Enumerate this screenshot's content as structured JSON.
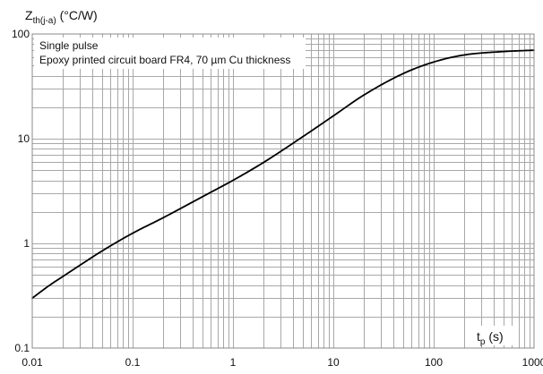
{
  "chart_data": {
    "type": "line",
    "title": "",
    "ylabel_main": "Z",
    "ylabel_sub": "th(j-a)",
    "ylabel_unit": " (°C/W)",
    "xlabel_main": "t",
    "xlabel_sub": "p",
    "xlabel_unit": " (s)",
    "xscale": "log",
    "yscale": "log",
    "xlim": [
      0.01,
      1000
    ],
    "ylim": [
      0.1,
      100
    ],
    "grid": true,
    "x_ticks": [
      "0.01",
      "0.1",
      "1",
      "10",
      "100",
      "1000"
    ],
    "y_ticks": [
      "0.1",
      "1",
      "10",
      "100"
    ],
    "annotations": [
      "Single pulse",
      "Epoxy printed circuit board FR4, 70 µm Cu thickness"
    ],
    "series": [
      {
        "x": [
          0.01,
          0.015,
          0.02,
          0.03,
          0.05,
          0.1,
          0.2,
          0.5,
          1,
          2,
          5,
          10,
          20,
          50,
          100,
          200,
          500,
          1000
        ],
        "y": [
          0.3,
          0.4,
          0.48,
          0.62,
          0.85,
          1.25,
          1.75,
          2.8,
          4.0,
          5.9,
          10.5,
          16.5,
          26,
          42,
          54,
          63,
          68,
          70
        ]
      }
    ]
  }
}
